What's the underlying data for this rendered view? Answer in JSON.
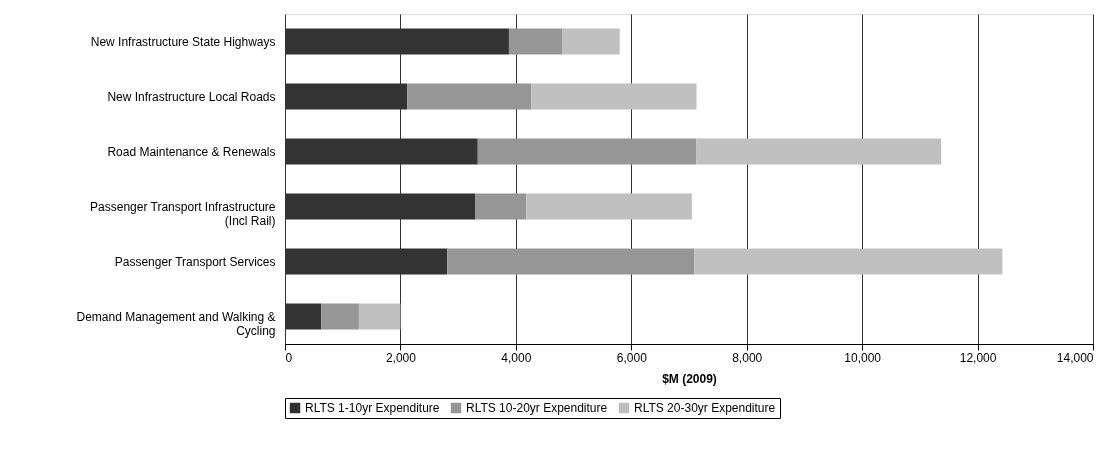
{
  "chart_data": {
    "type": "bar",
    "orientation": "horizontal",
    "stacked": true,
    "categories": [
      "New Infrastructure State Highways",
      "New Infrastructure Local Roads",
      "Road Maintenance & Renewals",
      "Passenger Transport Infrastructure (Incl Rail)",
      "Passenger Transport Services",
      "Demand Management and Walking & Cycling"
    ],
    "series": [
      {
        "name": "RLTS 1-10yr Expenditure",
        "color": "#333333",
        "values": [
          3880,
          2120,
          3340,
          3300,
          2810,
          630
        ]
      },
      {
        "name": "RLTS 10-20yr Expenditure",
        "color": "#969696",
        "values": [
          920,
          2150,
          3790,
          880,
          4280,
          650
        ]
      },
      {
        "name": "RLTS 20-30yr Expenditure",
        "color": "#c0c0c0",
        "values": [
          1000,
          2860,
          4240,
          2870,
          5340,
          720
        ]
      }
    ],
    "xlabel": "$M (2009)",
    "xlim": [
      0,
      14000
    ],
    "xticks": [
      0,
      {
        "value": 2000,
        "label": "2,000"
      },
      {
        "value": 4000,
        "label": "4,000"
      },
      {
        "value": 6000,
        "label": "6,000"
      },
      {
        "value": 8000,
        "label": "8,000"
      },
      {
        "value": 10000,
        "label": "10,000"
      },
      {
        "value": 12000,
        "label": "12,000"
      },
      {
        "value": 14000,
        "label": "14,000"
      }
    ],
    "grid": "x",
    "legend": "bottom"
  }
}
